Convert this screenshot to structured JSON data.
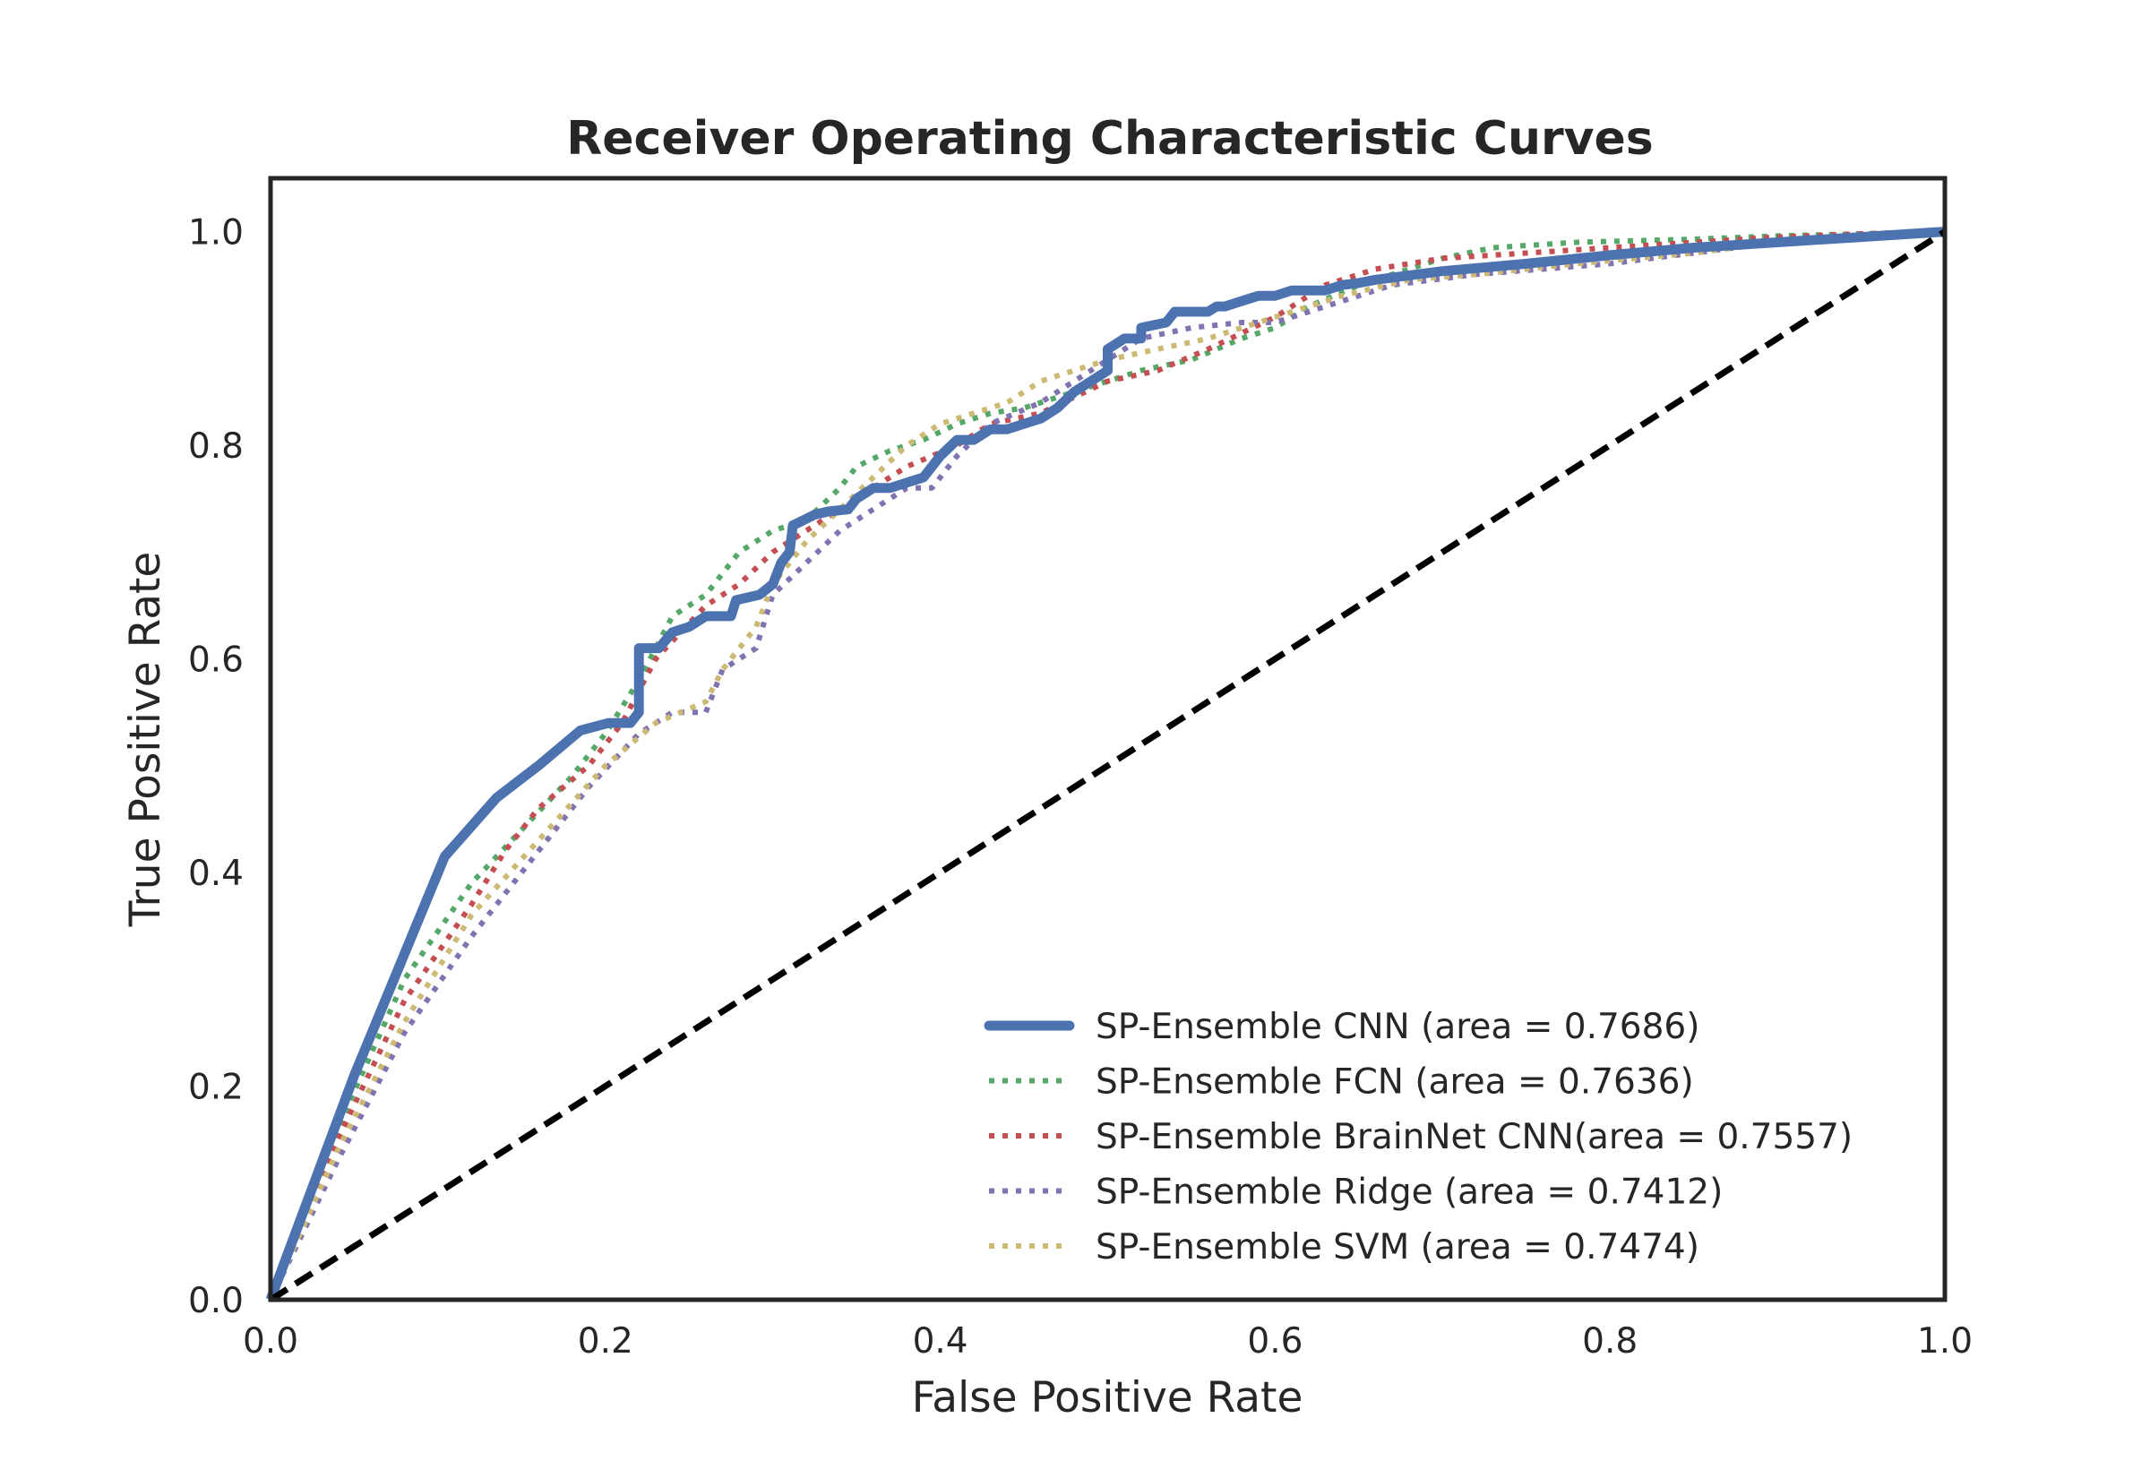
{
  "chart_data": {
    "type": "line",
    "title": "Receiver Operating Characteristic Curves",
    "xlabel": "False Positive Rate",
    "ylabel": "True Positive Rate",
    "xlim": [
      0,
      1
    ],
    "ylim": [
      0,
      1.05
    ],
    "xticks": [
      "0.0",
      "0.2",
      "0.4",
      "0.6",
      "0.8",
      "1.0"
    ],
    "yticks": [
      "0.0",
      "0.2",
      "0.4",
      "0.6",
      "0.8",
      "1.0"
    ],
    "grid": false,
    "legend_position": "lower-right",
    "chance_line": {
      "x": [
        0,
        1
      ],
      "y": [
        0,
        1
      ],
      "style": "dashed",
      "color": "#000000"
    },
    "series": [
      {
        "name": "SP-Ensemble CNN (area = 0.7686)",
        "color": "#4C72B0",
        "style": "solid",
        "x": [
          0,
          0.05,
          0.104,
          0.135,
          0.16,
          0.185,
          0.202,
          0.215,
          0.22,
          0.22,
          0.232,
          0.24,
          0.25,
          0.26,
          0.275,
          0.278,
          0.292,
          0.3,
          0.305,
          0.31,
          0.312,
          0.325,
          0.333,
          0.345,
          0.35,
          0.36,
          0.37,
          0.38,
          0.39,
          0.4,
          0.41,
          0.42,
          0.43,
          0.44,
          0.45,
          0.46,
          0.47,
          0.48,
          0.49,
          0.5,
          0.5,
          0.51,
          0.52,
          0.52,
          0.535,
          0.54,
          0.55,
          0.56,
          0.565,
          0.57,
          0.58,
          0.59,
          0.6,
          0.61,
          0.62,
          0.63,
          0.64,
          0.65,
          0.66,
          0.7,
          0.75,
          0.8,
          0.85,
          0.9,
          0.95,
          1.0
        ],
        "y": [
          0,
          0.21,
          0.415,
          0.47,
          0.5,
          0.533,
          0.54,
          0.54,
          0.55,
          0.61,
          0.61,
          0.625,
          0.63,
          0.64,
          0.64,
          0.655,
          0.66,
          0.67,
          0.69,
          0.7,
          0.725,
          0.735,
          0.738,
          0.74,
          0.75,
          0.76,
          0.76,
          0.765,
          0.77,
          0.79,
          0.805,
          0.805,
          0.815,
          0.815,
          0.82,
          0.825,
          0.835,
          0.85,
          0.86,
          0.87,
          0.89,
          0.9,
          0.9,
          0.91,
          0.915,
          0.925,
          0.925,
          0.925,
          0.93,
          0.93,
          0.935,
          0.94,
          0.94,
          0.945,
          0.945,
          0.945,
          0.95,
          0.952,
          0.955,
          0.963,
          0.97,
          0.978,
          0.985,
          0.99,
          0.995,
          1.0
        ]
      },
      {
        "name": "SP-Ensemble FCN (area = 0.7636)",
        "color": "#55A868",
        "style": "dotted",
        "x": [
          0,
          0.04,
          0.08,
          0.12,
          0.15,
          0.18,
          0.2,
          0.22,
          0.24,
          0.26,
          0.28,
          0.3,
          0.32,
          0.34,
          0.35,
          0.37,
          0.39,
          0.41,
          0.43,
          0.45,
          0.48,
          0.5,
          0.52,
          0.55,
          0.58,
          0.6,
          0.62,
          0.65,
          0.68,
          0.7,
          0.73,
          0.78,
          0.85,
          0.9,
          0.95,
          1.0
        ],
        "y": [
          0,
          0.16,
          0.3,
          0.39,
          0.44,
          0.49,
          0.53,
          0.58,
          0.64,
          0.66,
          0.7,
          0.72,
          0.73,
          0.76,
          0.78,
          0.795,
          0.805,
          0.82,
          0.83,
          0.835,
          0.85,
          0.86,
          0.87,
          0.88,
          0.9,
          0.91,
          0.93,
          0.95,
          0.965,
          0.975,
          0.985,
          0.99,
          0.993,
          0.996,
          0.998,
          1.0
        ]
      },
      {
        "name": "SP-Ensemble BrainNet CNN(area = 0.7557)",
        "color": "#C44E52",
        "style": "dotted",
        "x": [
          0,
          0.04,
          0.08,
          0.12,
          0.14,
          0.16,
          0.19,
          0.21,
          0.23,
          0.26,
          0.28,
          0.3,
          0.32,
          0.34,
          0.36,
          0.38,
          0.41,
          0.43,
          0.46,
          0.48,
          0.5,
          0.53,
          0.56,
          0.6,
          0.63,
          0.66,
          0.7,
          0.75,
          0.8,
          0.85,
          0.9,
          0.95,
          1.0
        ],
        "y": [
          0,
          0.15,
          0.28,
          0.37,
          0.42,
          0.46,
          0.5,
          0.54,
          0.6,
          0.65,
          0.67,
          0.7,
          0.72,
          0.74,
          0.76,
          0.78,
          0.8,
          0.82,
          0.83,
          0.845,
          0.86,
          0.87,
          0.89,
          0.92,
          0.95,
          0.965,
          0.975,
          0.98,
          0.985,
          0.99,
          0.995,
          0.998,
          1.0
        ]
      },
      {
        "name": "SP-Ensemble Ridge (area = 0.7412)",
        "color": "#8172B2",
        "style": "dotted",
        "x": [
          0,
          0.04,
          0.08,
          0.12,
          0.16,
          0.19,
          0.22,
          0.24,
          0.26,
          0.27,
          0.29,
          0.3,
          0.32,
          0.34,
          0.36,
          0.38,
          0.395,
          0.41,
          0.43,
          0.46,
          0.49,
          0.52,
          0.55,
          0.58,
          0.6,
          0.63,
          0.67,
          0.72,
          0.76,
          0.8,
          0.85,
          0.9,
          0.95,
          1.0
        ],
        "y": [
          0,
          0.13,
          0.25,
          0.34,
          0.42,
          0.48,
          0.53,
          0.55,
          0.55,
          0.59,
          0.61,
          0.66,
          0.69,
          0.72,
          0.74,
          0.76,
          0.76,
          0.79,
          0.82,
          0.84,
          0.87,
          0.9,
          0.91,
          0.915,
          0.915,
          0.93,
          0.95,
          0.96,
          0.965,
          0.97,
          0.98,
          0.99,
          0.995,
          1.0
        ]
      },
      {
        "name": "SP-Ensemble SVM (area = 0.7474)",
        "color": "#CCB974",
        "style": "dotted",
        "x": [
          0,
          0.04,
          0.08,
          0.12,
          0.16,
          0.2,
          0.23,
          0.26,
          0.27,
          0.29,
          0.3,
          0.32,
          0.34,
          0.36,
          0.38,
          0.4,
          0.42,
          0.44,
          0.46,
          0.48,
          0.5,
          0.53,
          0.56,
          0.6,
          0.64,
          0.68,
          0.72,
          0.78,
          0.85,
          0.9,
          0.95,
          1.0
        ],
        "y": [
          0,
          0.14,
          0.26,
          0.36,
          0.43,
          0.5,
          0.54,
          0.56,
          0.59,
          0.63,
          0.67,
          0.71,
          0.74,
          0.77,
          0.8,
          0.82,
          0.83,
          0.84,
          0.86,
          0.87,
          0.88,
          0.89,
          0.9,
          0.92,
          0.94,
          0.955,
          0.96,
          0.97,
          0.98,
          0.99,
          0.995,
          1.0
        ]
      }
    ]
  }
}
